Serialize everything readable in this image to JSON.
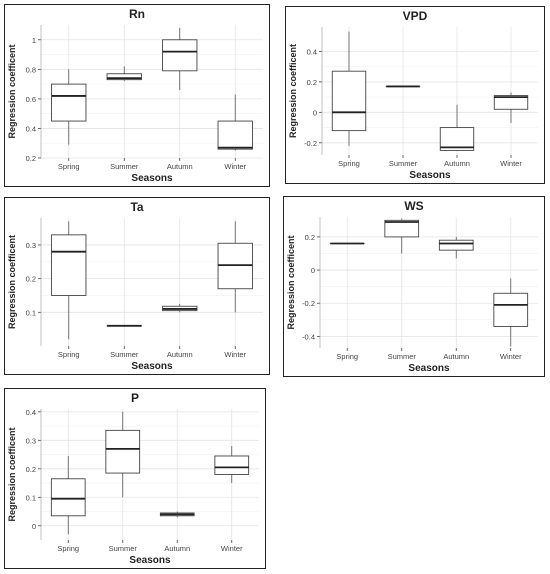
{
  "chart_data": [
    {
      "type": "boxplot",
      "title": "Rn",
      "xlabel": "Seasons",
      "ylabel": "Regression coefficent",
      "categories": [
        "Spring",
        "Summer",
        "Autumn",
        "Winter"
      ],
      "ylim": [
        0.2,
        1.1
      ],
      "yticks": [
        0.2,
        0.4,
        0.6,
        0.8,
        1.0
      ],
      "ytick_labels": [
        "0.2",
        "0.4",
        "0.6",
        "0.8",
        "1"
      ],
      "grid": true,
      "boxes": [
        {
          "category": "Spring",
          "min": 0.29,
          "q1": 0.45,
          "median": 0.62,
          "q3": 0.7,
          "max": 0.8
        },
        {
          "category": "Summer",
          "min": 0.72,
          "q1": 0.73,
          "median": 0.74,
          "q3": 0.77,
          "max": 0.82
        },
        {
          "category": "Autumn",
          "min": 0.66,
          "q1": 0.79,
          "median": 0.92,
          "q3": 1.0,
          "max": 1.08
        },
        {
          "category": "Winter",
          "min": 0.25,
          "q1": 0.26,
          "median": 0.27,
          "q3": 0.45,
          "max": 0.63
        }
      ]
    },
    {
      "type": "boxplot",
      "title": "VPD",
      "xlabel": "Seasons",
      "ylabel": "Regression coefficent",
      "categories": [
        "Spring",
        "Summer",
        "Autumn",
        "Winter"
      ],
      "ylim": [
        -0.28,
        0.56
      ],
      "yticks": [
        -0.2,
        0.0,
        0.2,
        0.4
      ],
      "ytick_labels": [
        "-0.2",
        "0",
        "0.2",
        "0.4"
      ],
      "grid": true,
      "boxes": [
        {
          "category": "Spring",
          "min": -0.22,
          "q1": -0.12,
          "median": 0.0,
          "q3": 0.27,
          "max": 0.53
        },
        {
          "category": "Summer",
          "min": 0.17,
          "q1": 0.17,
          "median": 0.17,
          "q3": 0.17,
          "max": 0.17
        },
        {
          "category": "Autumn",
          "min": -0.25,
          "q1": -0.25,
          "median": -0.23,
          "q3": -0.1,
          "max": 0.05
        },
        {
          "category": "Winter",
          "min": -0.07,
          "q1": 0.02,
          "median": 0.1,
          "q3": 0.11,
          "max": 0.13
        }
      ]
    },
    {
      "type": "boxplot",
      "title": "Ta",
      "xlabel": "Seasons",
      "ylabel": "Regression coefficent",
      "categories": [
        "Spring",
        "Summer",
        "Autumn",
        "Winter"
      ],
      "ylim": [
        0.0,
        0.38
      ],
      "yticks": [
        0.1,
        0.2,
        0.3
      ],
      "ytick_labels": [
        "0.1",
        "0.2",
        "0.3"
      ],
      "grid": true,
      "boxes": [
        {
          "category": "Spring",
          "min": 0.02,
          "q1": 0.15,
          "median": 0.28,
          "q3": 0.33,
          "max": 0.37
        },
        {
          "category": "Summer",
          "min": 0.06,
          "q1": 0.06,
          "median": 0.06,
          "q3": 0.06,
          "max": 0.06
        },
        {
          "category": "Autumn",
          "min": 0.1,
          "q1": 0.105,
          "median": 0.11,
          "q3": 0.118,
          "max": 0.125
        },
        {
          "category": "Winter",
          "min": 0.1,
          "q1": 0.17,
          "median": 0.24,
          "q3": 0.305,
          "max": 0.37
        }
      ]
    },
    {
      "type": "boxplot",
      "title": "WS",
      "xlabel": "Seasons",
      "ylabel": "Regression coefficent",
      "categories": [
        "Spring",
        "Summer",
        "Autumn",
        "Winter"
      ],
      "ylim": [
        -0.47,
        0.32
      ],
      "yticks": [
        -0.4,
        -0.2,
        0.0,
        0.2
      ],
      "ytick_labels": [
        "-0.4",
        "-0.2",
        "0",
        "0.2"
      ],
      "grid": true,
      "boxes": [
        {
          "category": "Spring",
          "min": 0.16,
          "q1": 0.16,
          "median": 0.16,
          "q3": 0.16,
          "max": 0.16
        },
        {
          "category": "Summer",
          "min": 0.1,
          "q1": 0.2,
          "median": 0.29,
          "q3": 0.3,
          "max": 0.31
        },
        {
          "category": "Autumn",
          "min": 0.07,
          "q1": 0.12,
          "median": 0.16,
          "q3": 0.18,
          "max": 0.2
        },
        {
          "category": "Winter",
          "min": -0.46,
          "q1": -0.34,
          "median": -0.21,
          "q3": -0.14,
          "max": -0.05
        }
      ]
    },
    {
      "type": "boxplot",
      "title": "P",
      "xlabel": "Seasons",
      "ylabel": "Regression coefficent",
      "categories": [
        "Spring",
        "Summer",
        "Autumn",
        "Winter"
      ],
      "ylim": [
        -0.05,
        0.41
      ],
      "yticks": [
        0.0,
        0.1,
        0.2,
        0.3,
        0.4
      ],
      "ytick_labels": [
        "0",
        "0.1",
        "0.2",
        "0.3",
        "0.4"
      ],
      "grid": true,
      "boxes": [
        {
          "category": "Spring",
          "min": -0.03,
          "q1": 0.035,
          "median": 0.095,
          "q3": 0.165,
          "max": 0.245
        },
        {
          "category": "Summer",
          "min": 0.1,
          "q1": 0.185,
          "median": 0.27,
          "q3": 0.335,
          "max": 0.4
        },
        {
          "category": "Autumn",
          "min": 0.03,
          "q1": 0.035,
          "median": 0.04,
          "q3": 0.045,
          "max": 0.05
        },
        {
          "category": "Winter",
          "min": 0.15,
          "q1": 0.18,
          "median": 0.205,
          "q3": 0.245,
          "max": 0.28
        }
      ]
    }
  ]
}
